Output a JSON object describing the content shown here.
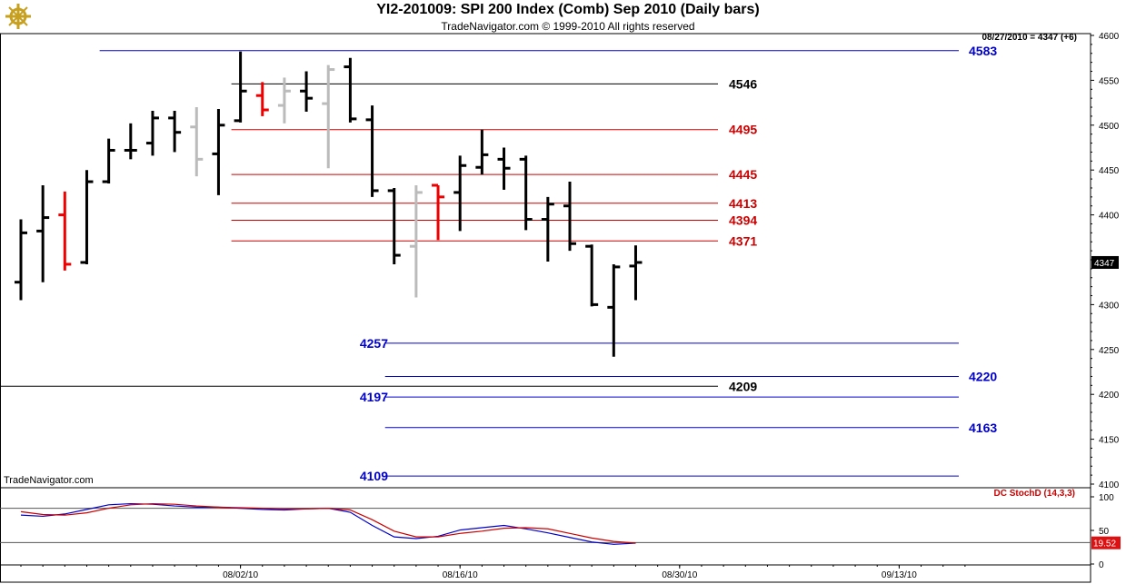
{
  "header": {
    "title": "YI2-201009:  SPI 200 Index (Comb) Sep 2010  (Daily bars)",
    "copyright": "TradeNavigator.com © 1999-2010 All rights reserved"
  },
  "quote_box": "08/27/2010 = 4347 (+6)",
  "watermark": "TradeNavigator.com",
  "last_price_tag": "4347",
  "indicator": {
    "label": "DC StochD (14,3,3)",
    "value_tag": "19.52",
    "y_ticks": [
      "100",
      "50",
      "0"
    ]
  },
  "colors": {
    "up_bar": "#000000",
    "down_bar": "#ee0000",
    "inside_bar": "#bbbbbb",
    "support_lines": "#0000cc",
    "resistance_lines": "#cc0000",
    "pivot_lines": "#000000",
    "stoch_k": "#0000cc",
    "stoch_d": "#cc0000"
  },
  "chart_data": [
    {
      "type": "ohlc",
      "title": "YI2-201009:  SPI 200 Index (Comb) Sep 2010  (Daily bars)",
      "ylim": [
        4100,
        4600
      ],
      "y_ticks": [
        "4600",
        "4550",
        "4500",
        "4450",
        "4400",
        "4350",
        "4300",
        "4250",
        "4200",
        "4150",
        "4100"
      ],
      "x_ticks": [
        {
          "label": "08/02/10",
          "index": 10
        },
        {
          "label": "08/16/10",
          "index": 20
        },
        {
          "label": "08/30/10",
          "index": 30
        },
        {
          "label": "09/13/10",
          "index": 40
        }
      ],
      "x_slots": 50,
      "bars": [
        {
          "o": 4325,
          "h": 4395,
          "l": 4305,
          "c": 4380,
          "kind": "up"
        },
        {
          "o": 4382,
          "h": 4433,
          "l": 4325,
          "c": 4397,
          "kind": "up"
        },
        {
          "o": 4400,
          "h": 4426,
          "l": 4338,
          "c": 4345,
          "kind": "down"
        },
        {
          "o": 4347,
          "h": 4450,
          "l": 4345,
          "c": 4437,
          "kind": "up"
        },
        {
          "o": 4437,
          "h": 4485,
          "l": 4435,
          "c": 4472,
          "kind": "up"
        },
        {
          "o": 4472,
          "h": 4502,
          "l": 4462,
          "c": 4472,
          "kind": "up"
        },
        {
          "o": 4480,
          "h": 4516,
          "l": 4466,
          "c": 4508,
          "kind": "up"
        },
        {
          "o": 4508,
          "h": 4516,
          "l": 4470,
          "c": 4492,
          "kind": "up"
        },
        {
          "o": 4498,
          "h": 4520,
          "l": 4443,
          "c": 4462,
          "kind": "inside"
        },
        {
          "o": 4468,
          "h": 4518,
          "l": 4422,
          "c": 4500,
          "kind": "up"
        },
        {
          "o": 4505,
          "h": 4582,
          "l": 4503,
          "c": 4538,
          "kind": "up"
        },
        {
          "o": 4533,
          "h": 4548,
          "l": 4510,
          "c": 4517,
          "kind": "down"
        },
        {
          "o": 4522,
          "h": 4553,
          "l": 4502,
          "c": 4538,
          "kind": "inside"
        },
        {
          "o": 4538,
          "h": 4560,
          "l": 4515,
          "c": 4530,
          "kind": "up"
        },
        {
          "o": 4524,
          "h": 4567,
          "l": 4452,
          "c": 4562,
          "kind": "inside"
        },
        {
          "o": 4565,
          "h": 4575,
          "l": 4503,
          "c": 4507,
          "kind": "up"
        },
        {
          "o": 4506,
          "h": 4522,
          "l": 4420,
          "c": 4427,
          "kind": "up"
        },
        {
          "o": 4427,
          "h": 4430,
          "l": 4345,
          "c": 4355,
          "kind": "up"
        },
        {
          "o": 4365,
          "h": 4433,
          "l": 4308,
          "c": 4425,
          "kind": "inside"
        },
        {
          "o": 4433,
          "h": 4433,
          "l": 4372,
          "c": 4420,
          "kind": "down"
        },
        {
          "o": 4425,
          "h": 4466,
          "l": 4382,
          "c": 4455,
          "kind": "up"
        },
        {
          "o": 4453,
          "h": 4495,
          "l": 4445,
          "c": 4467,
          "kind": "up"
        },
        {
          "o": 4462,
          "h": 4475,
          "l": 4428,
          "c": 4452,
          "kind": "up"
        },
        {
          "o": 4462,
          "h": 4466,
          "l": 4383,
          "c": 4395,
          "kind": "up"
        },
        {
          "o": 4395,
          "h": 4420,
          "l": 4348,
          "c": 4412,
          "kind": "up"
        },
        {
          "o": 4410,
          "h": 4437,
          "l": 4360,
          "c": 4368,
          "kind": "up"
        },
        {
          "o": 4365,
          "h": 4367,
          "l": 4298,
          "c": 4300,
          "kind": "up"
        },
        {
          "o": 4297,
          "h": 4345,
          "l": 4242,
          "c": 4342,
          "kind": "up"
        },
        {
          "o": 4343,
          "h": 4366,
          "l": 4305,
          "c": 4347,
          "kind": "up"
        }
      ]
    },
    {
      "type": "horizontal_levels",
      "levels": [
        {
          "value": 4583,
          "label": "4583",
          "color": "#0000cc",
          "x_from": 4,
          "label_side": "right"
        },
        {
          "value": 4546,
          "label": "4546",
          "color": "#000000",
          "x_from": 10,
          "label_side": "mid"
        },
        {
          "value": 4495,
          "label": "4495",
          "color": "#cc0000",
          "x_from": 10,
          "label_side": "mid"
        },
        {
          "value": 4445,
          "label": "4445",
          "color": "#cc0000",
          "x_from": 10,
          "label_side": "mid"
        },
        {
          "value": 4413,
          "label": "4413",
          "color": "#cc0000",
          "x_from": 10,
          "label_side": "mid"
        },
        {
          "value": 4394,
          "label": "4394",
          "color": "#cc0000",
          "x_from": 10,
          "label_side": "mid"
        },
        {
          "value": 4371,
          "label": "4371",
          "color": "#cc0000",
          "x_from": 10,
          "label_side": "mid"
        },
        {
          "value": 4257,
          "label": "4257",
          "color": "#0000cc",
          "x_from": 17,
          "label_side": "left"
        },
        {
          "value": 4220,
          "label": "4220",
          "color": "#0000cc",
          "x_from": 17,
          "label_side": "right"
        },
        {
          "value": 4209,
          "label": "4209",
          "color": "#000000",
          "x_from": 0,
          "label_side": "mid"
        },
        {
          "value": 4197,
          "label": "4197",
          "color": "#0000cc",
          "x_from": 17,
          "label_side": "left"
        },
        {
          "value": 4163,
          "label": "4163",
          "color": "#0000cc",
          "x_from": 17,
          "label_side": "right"
        },
        {
          "value": 4109,
          "label": "4109",
          "color": "#0000cc",
          "x_from": 17,
          "label_side": "left"
        }
      ]
    },
    {
      "type": "line",
      "title": "DC StochD (14,3,3)",
      "ylim": [
        0,
        100
      ],
      "reference_lines": [
        80,
        20
      ],
      "series": [
        {
          "values": [
            68,
            66,
            70,
            78,
            86,
            88,
            87,
            84,
            82,
            82,
            80,
            78,
            77,
            79,
            80,
            73,
            50,
            30,
            27,
            31,
            42,
            46,
            50,
            44,
            37,
            29,
            21,
            17,
            19
          ]
        },
        {
          "values": [
            74,
            69,
            68,
            72,
            80,
            86,
            88,
            87,
            84,
            82,
            81,
            80,
            79,
            79,
            80,
            77,
            60,
            40,
            30,
            30,
            36,
            40,
            45,
            46,
            44,
            36,
            28,
            22,
            19
          ]
        }
      ]
    }
  ]
}
